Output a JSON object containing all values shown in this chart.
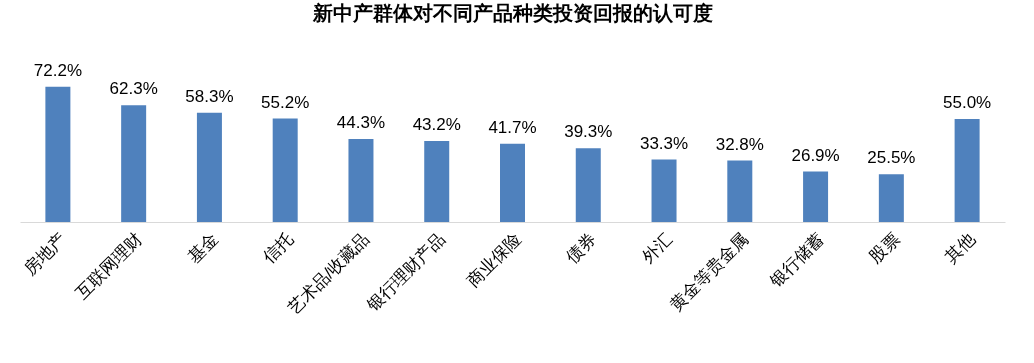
{
  "chart_data": {
    "type": "bar",
    "title": "新中产群体对不同产品种类投资回报的认可度",
    "categories": [
      "房地产",
      "互联网理财",
      "基金",
      "信托",
      "艺术品/收藏品",
      "银行理财产品",
      "商业保险",
      "债券",
      "外汇",
      "黄金等贵金属",
      "银行储蓄",
      "股票",
      "其他"
    ],
    "values": [
      72.2,
      62.3,
      58.3,
      55.2,
      44.3,
      43.2,
      41.7,
      39.3,
      33.3,
      32.8,
      26.9,
      25.5,
      55.0
    ],
    "value_labels": [
      "72.2%",
      "62.3%",
      "58.3%",
      "55.2%",
      "44.3%",
      "43.2%",
      "41.7%",
      "39.3%",
      "33.3%",
      "32.8%",
      "26.9%",
      "25.5%",
      "55.0%"
    ],
    "color": "#4f81bd",
    "tick_labels": "x"
  }
}
